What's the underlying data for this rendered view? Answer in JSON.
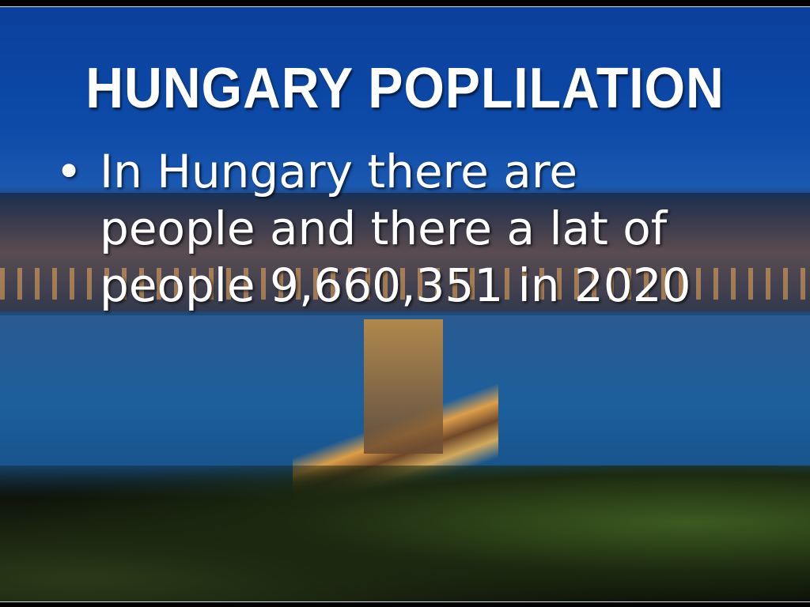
{
  "slide": {
    "title": "HUNGARY POPLILATION",
    "bullets": [
      {
        "marker": "•",
        "text": "In Hungary there are people and there a lat of people 9,660,351 in 2020"
      }
    ]
  },
  "colors": {
    "sky": "#0d4aa8",
    "text": "#ffffff"
  }
}
